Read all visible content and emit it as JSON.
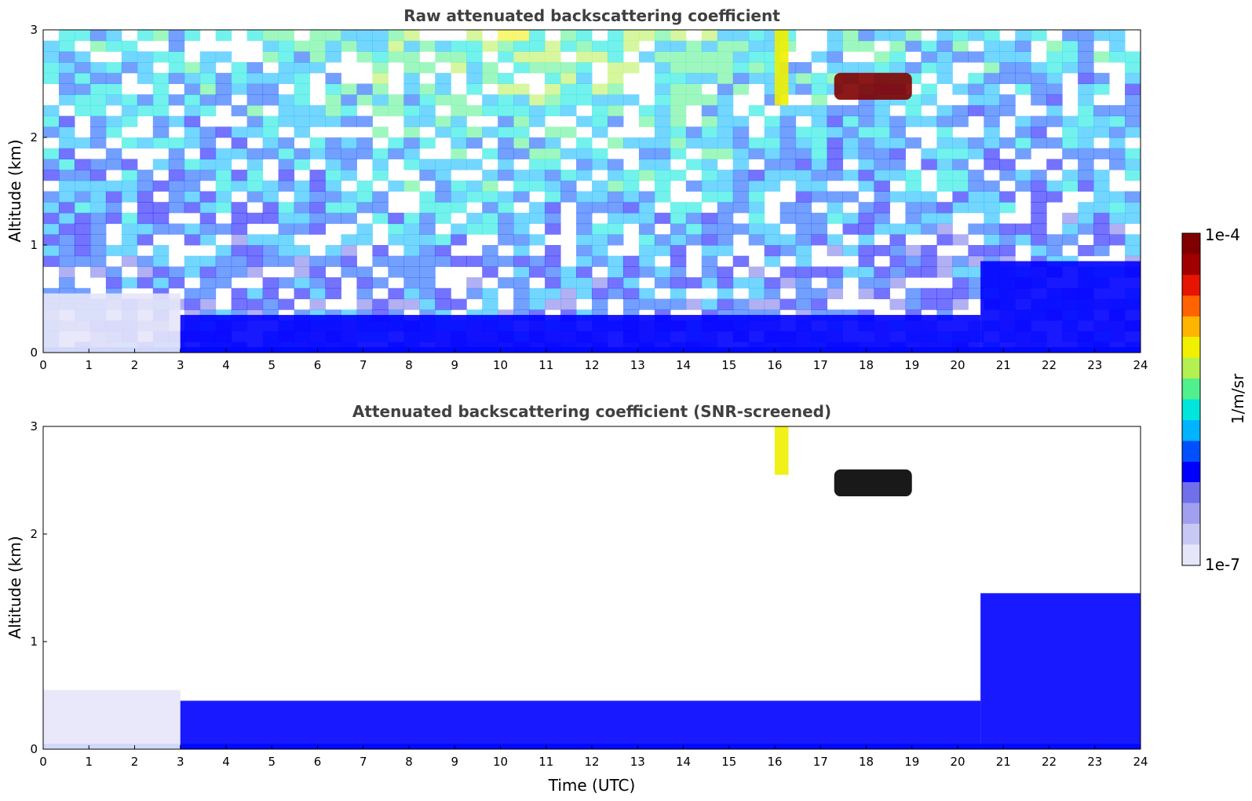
{
  "chart_data": [
    {
      "type": "heatmap",
      "title": "Raw attenuated backscattering coefficient",
      "xlabel": "",
      "ylabel": "Altitude (km)",
      "xlim": [
        0,
        24
      ],
      "ylim": [
        0,
        3
      ],
      "xticks": [
        "0",
        "1",
        "2",
        "3",
        "4",
        "5",
        "6",
        "7",
        "8",
        "9",
        "10",
        "11",
        "12",
        "13",
        "14",
        "15",
        "16",
        "17",
        "18",
        "19",
        "20",
        "21",
        "22",
        "23",
        "24"
      ],
      "yticks": [
        "0",
        "1",
        "2",
        "3"
      ],
      "features": [
        {
          "name": "surface layer",
          "x": [
            0,
            24
          ],
          "y": [
            0,
            0.05
          ],
          "level": 0.35
        },
        {
          "name": "boundary layer (morning)",
          "x": [
            0,
            3
          ],
          "y": [
            0,
            0.55
          ],
          "level": 0.05
        },
        {
          "name": "boundary layer (day)",
          "x": [
            3,
            20.5
          ],
          "y": [
            0,
            0.35
          ],
          "level": 0.25
        },
        {
          "name": "boundary layer (evening)",
          "x": [
            20.5,
            24
          ],
          "y": [
            0,
            0.85
          ],
          "level": 0.3
        },
        {
          "name": "cloud",
          "x": [
            17.3,
            19
          ],
          "y": [
            2.35,
            2.6
          ],
          "level": 0.95
        },
        {
          "name": "precipitation streak",
          "x": [
            16,
            16.3
          ],
          "y": [
            2.3,
            3
          ],
          "level": 0.65
        }
      ]
    },
    {
      "type": "heatmap",
      "title": "Attenuated backscattering coefficient (SNR-screened)",
      "xlabel": "Time (UTC)",
      "ylabel": "Altitude (km)",
      "xlim": [
        0,
        24
      ],
      "ylim": [
        0,
        3
      ],
      "xticks": [
        "0",
        "1",
        "2",
        "3",
        "4",
        "5",
        "6",
        "7",
        "8",
        "9",
        "10",
        "11",
        "12",
        "13",
        "14",
        "15",
        "16",
        "17",
        "18",
        "19",
        "20",
        "21",
        "22",
        "23",
        "24"
      ],
      "yticks": [
        "0",
        "1",
        "2",
        "3"
      ],
      "features": [
        {
          "name": "surface layer",
          "x": [
            0,
            24
          ],
          "y": [
            0,
            0.05
          ],
          "level": 0.35
        },
        {
          "name": "boundary layer (morning)",
          "x": [
            0,
            3
          ],
          "y": [
            0,
            0.55
          ],
          "level": 0.05
        },
        {
          "name": "boundary layer (day)",
          "x": [
            3,
            20.5
          ],
          "y": [
            0,
            0.45
          ],
          "level": 0.25
        },
        {
          "name": "boundary layer (evening)",
          "x": [
            20.5,
            24
          ],
          "y": [
            0,
            1.45
          ],
          "level": 0.3
        },
        {
          "name": "cloud",
          "x": [
            17.3,
            19
          ],
          "y": [
            2.35,
            2.6
          ],
          "level": 1.0
        },
        {
          "name": "precipitation streak",
          "x": [
            16,
            16.3
          ],
          "y": [
            2.55,
            3
          ],
          "level": 0.65
        }
      ]
    }
  ],
  "colorbar": {
    "label": "1/m/sr",
    "max_label": "1e-4",
    "min_label": "1e-7",
    "colors": [
      "#e6e6fa",
      "#c8c8f4",
      "#a0a0ee",
      "#7070ea",
      "#0000ff",
      "#0050ff",
      "#00b4ff",
      "#00e6dc",
      "#50f08c",
      "#b4f050",
      "#f0f000",
      "#ffb400",
      "#ff6400",
      "#e61400",
      "#a00000",
      "#800000"
    ]
  }
}
